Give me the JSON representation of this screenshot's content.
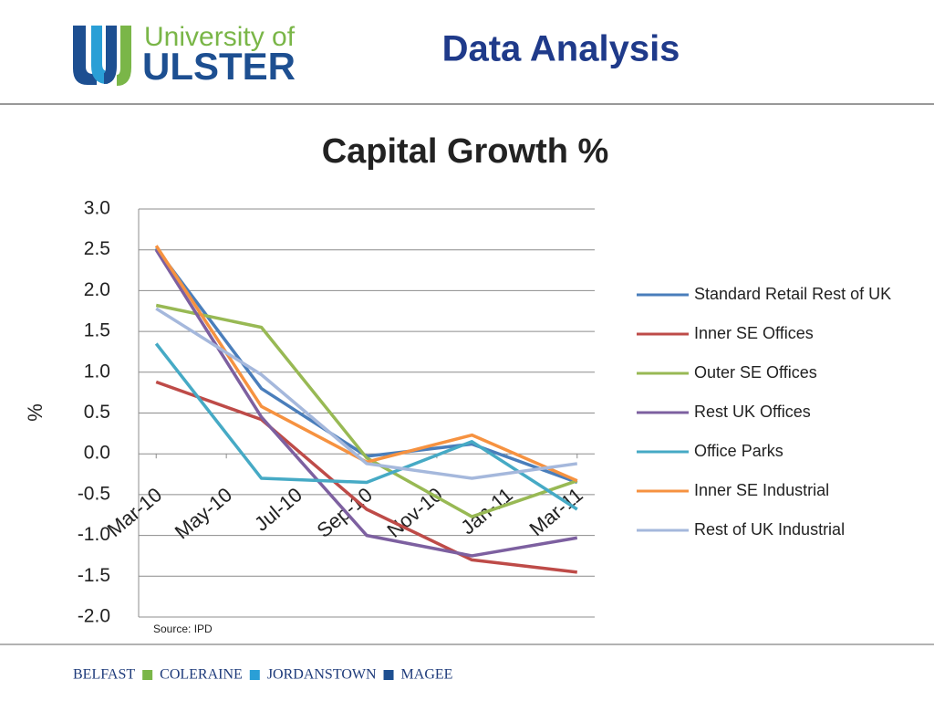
{
  "header": {
    "logo_top": "University of",
    "logo_bottom": "ULSTER",
    "title": "Data Analysis"
  },
  "chart_data": {
    "type": "line",
    "title": "Capital Growth %",
    "y_label": "%",
    "source": "Source: IPD",
    "x": [
      0,
      3,
      6,
      9,
      12
    ],
    "xlim": [
      -0.5,
      12.5
    ],
    "xticks": [
      {
        "value": 0,
        "label": "Mar-10"
      },
      {
        "value": 2,
        "label": "May-10"
      },
      {
        "value": 4,
        "label": "Jul-10"
      },
      {
        "value": 6,
        "label": "Sep-10"
      },
      {
        "value": 8,
        "label": "Nov-10"
      },
      {
        "value": 10,
        "label": "Jan-11"
      },
      {
        "value": 12,
        "label": "Mar-11"
      }
    ],
    "ylim": [
      -2,
      3
    ],
    "yticks": [
      {
        "value": 3,
        "label": "3.0"
      },
      2.5,
      {
        "value": 2,
        "label": "2.0"
      },
      1.5,
      {
        "value": 1,
        "label": "1.0"
      },
      0.5,
      {
        "value": 0,
        "label": "0.0"
      },
      -0.5,
      {
        "value": -1,
        "label": "-1.0"
      },
      -1.5,
      {
        "value": -2,
        "label": "-2.0"
      }
    ],
    "grid": true,
    "legend": "right",
    "series": [
      {
        "name": "Standard Retail Rest of UK",
        "color": "#4a7ebb",
        "values": [
          2.52,
          0.8,
          -0.03,
          0.12,
          -0.35
        ]
      },
      {
        "name": "Inner SE Offices",
        "color": "#be4b48",
        "values": [
          0.88,
          0.42,
          -0.68,
          -1.3,
          -1.45
        ]
      },
      {
        "name": "Outer SE Offices",
        "color": "#98b954",
        "values": [
          1.82,
          1.55,
          -0.05,
          -0.77,
          -0.33
        ]
      },
      {
        "name": "Rest UK Offices",
        "color": "#7d60a0",
        "values": [
          2.5,
          0.45,
          -1.0,
          -1.25,
          -1.03
        ]
      },
      {
        "name": "Office Parks",
        "color": "#46aac5",
        "values": [
          1.35,
          -0.3,
          -0.35,
          0.15,
          -0.68
        ]
      },
      {
        "name": "Inner SE Industrial",
        "color": "#f69240",
        "values": [
          2.55,
          0.58,
          -0.1,
          0.23,
          -0.33
        ]
      },
      {
        "name": "Rest of UK Industrial",
        "color": "#a5b8dc",
        "values": [
          1.78,
          0.97,
          -0.12,
          -0.3,
          -0.12
        ]
      }
    ]
  },
  "footer": {
    "campuses": [
      "BELFAST",
      "COLERAINE",
      "JORDANSTOWN",
      "MAGEE"
    ]
  }
}
